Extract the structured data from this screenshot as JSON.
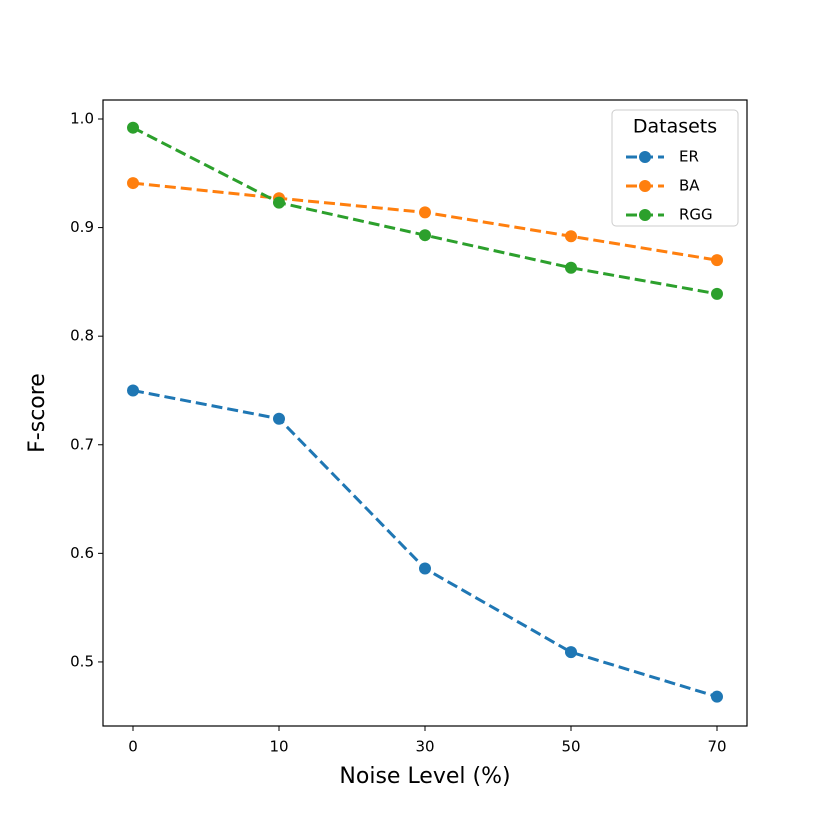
{
  "chart_data": {
    "type": "line",
    "xlabel": "Noise Level (%)",
    "ylabel": "F-score",
    "categories": [
      "0",
      "10",
      "30",
      "50",
      "70"
    ],
    "series": [
      {
        "name": "ER",
        "color": "#1f77b4",
        "values": [
          0.75,
          0.724,
          0.586,
          0.509,
          0.468
        ]
      },
      {
        "name": "BA",
        "color": "#ff7f0e",
        "values": [
          0.941,
          0.927,
          0.914,
          0.892,
          0.87
        ]
      },
      {
        "name": "RGG",
        "color": "#2ca02c",
        "values": [
          0.992,
          0.923,
          0.893,
          0.863,
          0.839
        ]
      }
    ],
    "ylim": [
      0.441,
      1.0175
    ],
    "yticks": [
      0.5,
      0.6,
      0.7,
      0.8,
      0.9,
      {
        "value": 1.0,
        "label": "1.0"
      }
    ],
    "legend_title": "Datasets",
    "legend_position": "upper right",
    "grid": false
  }
}
